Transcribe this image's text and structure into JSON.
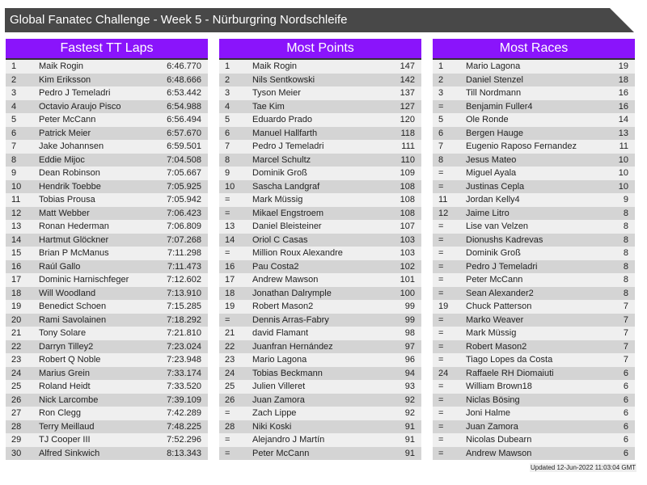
{
  "title": "Global Fanatec Challenge - Week 5 - Nürburgring Nordschleife",
  "colors": {
    "header": "#8a14fb",
    "titlebar": "#484848",
    "row_light": "#efefef",
    "row_dark": "#d4d4d4"
  },
  "boards": [
    {
      "title": "Fastest TT Laps",
      "rows": [
        [
          "1",
          "Maik Rogin",
          "6:46.770"
        ],
        [
          "2",
          "Kim Eriksson",
          "6:48.666"
        ],
        [
          "3",
          "Pedro J Temeladri",
          "6:53.442"
        ],
        [
          "4",
          "Octavio Araujo Pisco",
          "6:54.988"
        ],
        [
          "5",
          "Peter McCann",
          "6:56.494"
        ],
        [
          "6",
          "Patrick Meier",
          "6:57.670"
        ],
        [
          "7",
          "Jake Johannsen",
          "6:59.501"
        ],
        [
          "8",
          "Eddie Mijoc",
          "7:04.508"
        ],
        [
          "9",
          "Dean Robinson",
          "7:05.667"
        ],
        [
          "10",
          "Hendrik Toebbe",
          "7:05.925"
        ],
        [
          "11",
          "Tobias Prousa",
          "7:05.942"
        ],
        [
          "12",
          "Matt Webber",
          "7:06.423"
        ],
        [
          "13",
          "Ronan Hederman",
          "7:06.809"
        ],
        [
          "14",
          "Hartmut Glöckner",
          "7:07.268"
        ],
        [
          "15",
          "Brian P McManus",
          "7:11.298"
        ],
        [
          "16",
          "Raúl Gallo",
          "7:11.473"
        ],
        [
          "17",
          "Dominic Harnischfeger",
          "7:12.602"
        ],
        [
          "18",
          "Will Woodland",
          "7:13.910"
        ],
        [
          "19",
          "Benedict Schoen",
          "7:15.285"
        ],
        [
          "20",
          "Rami Savolainen",
          "7:18.292"
        ],
        [
          "21",
          "Tony Solare",
          "7:21.810"
        ],
        [
          "22",
          "Darryn Tilley2",
          "7:23.024"
        ],
        [
          "23",
          "Robert Q Noble",
          "7:23.948"
        ],
        [
          "24",
          "Marius Grein",
          "7:33.174"
        ],
        [
          "25",
          "Roland Heidt",
          "7:33.520"
        ],
        [
          "26",
          "Nick Larcombe",
          "7:39.109"
        ],
        [
          "27",
          "Ron Clegg",
          "7:42.289"
        ],
        [
          "28",
          "Terry Meillaud",
          "7:48.225"
        ],
        [
          "29",
          "TJ Cooper III",
          "7:52.296"
        ],
        [
          "30",
          "Alfred Sinkwich",
          "8:13.343"
        ]
      ]
    },
    {
      "title": "Most Points",
      "rows": [
        [
          "1",
          "Maik Rogin",
          "147"
        ],
        [
          "2",
          "Nils Sentkowski",
          "142"
        ],
        [
          "3",
          "Tyson Meier",
          "137"
        ],
        [
          "4",
          "Tae Kim",
          "127"
        ],
        [
          "5",
          "Eduardo Prado",
          "120"
        ],
        [
          "6",
          "Manuel Hallfarth",
          "118"
        ],
        [
          "7",
          "Pedro J Temeladri",
          "111"
        ],
        [
          "8",
          "Marcel Schultz",
          "110"
        ],
        [
          "9",
          "Dominik Groß",
          "109"
        ],
        [
          "10",
          "Sascha Landgraf",
          "108"
        ],
        [
          "=",
          "Mark Müssig",
          "108"
        ],
        [
          "=",
          "Mikael Engstroem",
          "108"
        ],
        [
          "13",
          "Daniel Bleisteiner",
          "107"
        ],
        [
          "14",
          "Oriol C Casas",
          "103"
        ],
        [
          "=",
          "Million Roux Alexandre",
          "103"
        ],
        [
          "16",
          "Pau Costa2",
          "102"
        ],
        [
          "17",
          "Andrew Mawson",
          "101"
        ],
        [
          "18",
          "Jonathan Dalrymple",
          "100"
        ],
        [
          "19",
          "Robert Mason2",
          "99"
        ],
        [
          "=",
          "Dennis Arras-Fabry",
          "99"
        ],
        [
          "21",
          "david Flamant",
          "98"
        ],
        [
          "22",
          "Juanfran Hernández",
          "97"
        ],
        [
          "23",
          "Mario Lagona",
          "96"
        ],
        [
          "24",
          "Tobias Beckmann",
          "94"
        ],
        [
          "25",
          "Julien Villeret",
          "93"
        ],
        [
          "26",
          "Juan Zamora",
          "92"
        ],
        [
          "=",
          "Zach Lippe",
          "92"
        ],
        [
          "28",
          "Niki Koski",
          "91"
        ],
        [
          "=",
          "Alejandro J Martín",
          "91"
        ],
        [
          "=",
          "Peter McCann",
          "91"
        ]
      ]
    },
    {
      "title": "Most Races",
      "rows": [
        [
          "1",
          "Mario Lagona",
          "19"
        ],
        [
          "2",
          "Daniel Stenzel",
          "18"
        ],
        [
          "3",
          "Till Nordmann",
          "16"
        ],
        [
          "=",
          "Benjamin Fuller4",
          "16"
        ],
        [
          "5",
          "Ole Ronde",
          "14"
        ],
        [
          "6",
          "Bergen Hauge",
          "13"
        ],
        [
          "7",
          "Eugenio Raposo Fernandez",
          "11"
        ],
        [
          "8",
          "Jesus Mateo",
          "10"
        ],
        [
          "=",
          "Miguel Ayala",
          "10"
        ],
        [
          "=",
          "Justinas Cepla",
          "10"
        ],
        [
          "11",
          "Jordan Kelly4",
          "9"
        ],
        [
          "12",
          "Jaime Litro",
          "8"
        ],
        [
          "=",
          "Lise van Velzen",
          "8"
        ],
        [
          "=",
          "Dionushs Kadrevas",
          "8"
        ],
        [
          "=",
          "Dominik Groß",
          "8"
        ],
        [
          "=",
          "Pedro J Temeladri",
          "8"
        ],
        [
          "=",
          "Peter McCann",
          "8"
        ],
        [
          "=",
          "Sean Alexander2",
          "8"
        ],
        [
          "19",
          "Chuck Patterson",
          "7"
        ],
        [
          "=",
          "Marko Weaver",
          "7"
        ],
        [
          "=",
          "Mark Müssig",
          "7"
        ],
        [
          "=",
          "Robert Mason2",
          "7"
        ],
        [
          "=",
          "Tiago Lopes da Costa",
          "7"
        ],
        [
          "24",
          "Raffaele RH Diomaiuti",
          "6"
        ],
        [
          "=",
          "William Brown18",
          "6"
        ],
        [
          "=",
          "Niclas Bösing",
          "6"
        ],
        [
          "=",
          "Joni Halme",
          "6"
        ],
        [
          "=",
          "Juan Zamora",
          "6"
        ],
        [
          "=",
          "Nicolas Dubearn",
          "6"
        ],
        [
          "=",
          "Andrew Mawson",
          "6"
        ]
      ]
    }
  ],
  "footer": "Updated 12-Jun-2022 11:03:04 GMT"
}
